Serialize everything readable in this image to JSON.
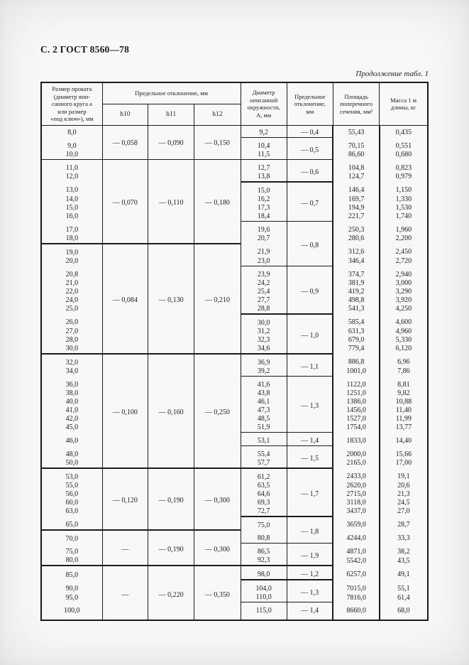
{
  "page": {
    "doc_header": "С. 2 ГОСТ 8560—78",
    "table_note": "Продолжение табл. 1"
  },
  "table": {
    "headers": {
      "size": "Размер проката\n(диаметр впи-\nсанного круга а\nили размер\n«под ключ»), мм",
      "tolerance_group": "Предельное отклонение, мм",
      "h10": "h10",
      "h11": "h11",
      "h12": "h12",
      "diameter": "Диаметр\nописанной\nокружности,\nА, мм",
      "deviation": "Предельное\nотклонение,\nмм",
      "area": "Площадь\nпоперечного\nсечения, мм²",
      "mass": "Масса 1 м\nдлины, кг"
    },
    "rows": [
      {
        "size": "8,0",
        "h": {
          "h10": "— 0,058",
          "h11": "— 0,090",
          "h12": "— 0,150",
          "span": 3
        },
        "a": "9,2",
        "dev": {
          "v": "— 0,4",
          "span": 1
        },
        "area": "55,43",
        "mass": "0,435",
        "r56": 1
      },
      {
        "size": "9,0",
        "a": "10,4",
        "dev": {
          "v": "— 0,5",
          "span": 2
        },
        "area": "70,15",
        "mass": "0,551",
        "gap": 1
      },
      {
        "size": "10,0",
        "a": "11,5",
        "area": "86,60",
        "mass": "0,680",
        "r14": 1,
        "r56": 1
      },
      {
        "size": "11,0",
        "h": {
          "h10": "— 0,070",
          "h11": "— 0,110",
          "h12": "— 0,180",
          "span": 8
        },
        "a": "12,7",
        "dev": {
          "v": "— 0,6",
          "span": 2
        },
        "area": "104,8",
        "mass": "0,823",
        "gap": 1
      },
      {
        "size": "12,0",
        "a": "13,8",
        "area": "124,7",
        "mass": "0,979",
        "r56": 2
      },
      {
        "size": "13,0",
        "a": "15,0",
        "dev": {
          "v": "— 0,7",
          "span": 4
        },
        "area": "146,4",
        "mass": "1,150",
        "gap": 1
      },
      {
        "size": "14,0",
        "a": "16,2",
        "area": "169,7",
        "mass": "1,330"
      },
      {
        "size": "15,0",
        "a": "17,3",
        "area": "194,9",
        "mass": "1,530"
      },
      {
        "size": "16,0",
        "a": "18,4",
        "area": "221,7",
        "mass": "1,740",
        "r56": 1
      },
      {
        "size": "17,0",
        "a": "19,6",
        "dev": {
          "v": "— 0,8",
          "span": 4
        },
        "area": "250,3",
        "mass": "1,960",
        "gap": 1
      },
      {
        "size": "18,0",
        "a": "20,7",
        "area": "280,6",
        "mass": "2,200",
        "r14": 2
      },
      {
        "size": "19,0",
        "h": {
          "h10": "— 0,084",
          "h11": "— 0,130",
          "h12": "— 0,210",
          "span": 11
        },
        "a": "21,9",
        "area": "312,6",
        "mass": "2,450",
        "gap": 1
      },
      {
        "size": "20,0",
        "a": "23,0",
        "area": "346,4",
        "mass": "2,720",
        "r56": 1
      },
      {
        "size": "20,8",
        "a": "23,9",
        "dev": {
          "v": "— 0,9",
          "span": 5
        },
        "area": "374,7",
        "mass": "2,940",
        "gap": 1
      },
      {
        "size": "21,0",
        "a": "24,2",
        "area": "381,9",
        "mass": "3,000"
      },
      {
        "size": "22,0",
        "a": "25,4",
        "area": "419,2",
        "mass": "3,290"
      },
      {
        "size": "24,0",
        "a": "27,7",
        "area": "498,8",
        "mass": "3,920"
      },
      {
        "size": "25,0",
        "a": "28,8",
        "area": "541,3",
        "mass": "4,250",
        "r56": 2
      },
      {
        "size": "26,0",
        "a": "30,0",
        "dev": {
          "v": "— 1,0",
          "span": 4
        },
        "area": "585,4",
        "mass": "4,600",
        "gap": 1
      },
      {
        "size": "27,0",
        "a": "31,2",
        "area": "631,3",
        "mass": "4,960"
      },
      {
        "size": "28,0",
        "a": "32,3",
        "area": "679,0",
        "mass": "5,330"
      },
      {
        "size": "30,0",
        "a": "34,6",
        "area": "779,4",
        "mass": "6,120",
        "r14": 2,
        "r56": 2
      },
      {
        "size": "32,0",
        "h": {
          "h10": "— 0,100",
          "h11": "— 0,160",
          "h12": "— 0,250",
          "span": 11
        },
        "a": "36,9",
        "dev": {
          "v": "— 1,1",
          "span": 2
        },
        "area": "886,8",
        "mass": "6,96",
        "gap": 1
      },
      {
        "size": "34,0",
        "a": "39,2",
        "area": "1001,0",
        "mass": "7,86",
        "r56": 1
      },
      {
        "size": "36,0",
        "a": "41,6",
        "dev": {
          "v": "— 1,3",
          "span": 6
        },
        "area": "1122,0",
        "mass": "8,81",
        "gap": 1
      },
      {
        "size": "38,0",
        "a": "43,8",
        "area": "1251,0",
        "mass": "9,82"
      },
      {
        "size": "40,0",
        "a": "46,1",
        "area": "1386,0",
        "mass": "10,88"
      },
      {
        "size": "41,0",
        "a": "47,3",
        "area": "1456,0",
        "mass": "11,40"
      },
      {
        "size": "42,0",
        "a": "48,5",
        "area": "1527,0",
        "mass": "11,99"
      },
      {
        "size": "45,0",
        "a": "51,9",
        "area": "1754,0",
        "mass": "13,77",
        "r56": 1
      },
      {
        "size": "46,0",
        "a": "53,1",
        "dev": {
          "v": "— 1,4",
          "span": 1
        },
        "area": "1833,0",
        "mass": "14,40",
        "gap": 1,
        "r56": 1
      },
      {
        "size": "48,0",
        "a": "55,4",
        "dev": {
          "v": "— 1,5",
          "span": 2
        },
        "area": "2000,0",
        "mass": "15,66",
        "gap": 1
      },
      {
        "size": "50,0",
        "a": "57,7",
        "area": "2165,0",
        "mass": "17,00",
        "r14": 2,
        "r56": 2
      },
      {
        "size": "53,0",
        "h": {
          "h10": "— 0,120",
          "h11": "— 0,190",
          "h12": "— 0,300",
          "span": 6
        },
        "a": "61,2",
        "dev": {
          "v": "— 1,7",
          "span": 5
        },
        "area": "2433,0",
        "mass": "19,1",
        "gap": 1
      },
      {
        "size": "55,0",
        "a": "63,5",
        "area": "2620,0",
        "mass": "20,6"
      },
      {
        "size": "56,0",
        "a": "64,6",
        "area": "2715,0",
        "mass": "21,3"
      },
      {
        "size": "60,0",
        "a": "69,3",
        "area": "3118,0",
        "mass": "24,5"
      },
      {
        "size": "63,0",
        "a": "72,7",
        "area": "3437,0",
        "mass": "27,0",
        "r56": 2
      },
      {
        "size": "65,0",
        "a": "75,0",
        "dev": {
          "v": "— 1,8",
          "span": 2
        },
        "area": "3659,0",
        "mass": "28,7",
        "gap": 1,
        "r14": 2
      },
      {
        "size": "70,0",
        "h": {
          "h10": "—",
          "h11": "— 0,190",
          "h12": "— 0,300",
          "span": 3
        },
        "a": "80,8",
        "area": "4244,0",
        "mass": "33,3",
        "gap": 1,
        "r56": 1
      },
      {
        "size": "75,0",
        "a": "86,5",
        "dev": {
          "v": "— 1,9",
          "span": 2
        },
        "area": "4871,0",
        "mass": "38,2",
        "gap": 1
      },
      {
        "size": "80,0",
        "a": "92,3",
        "area": "5542,0",
        "mass": "43,5",
        "r14": 2,
        "r56": 2
      },
      {
        "size": "85,0",
        "h": {
          "h10": "—",
          "h11": "— 0,220",
          "h12": "— 0,350",
          "span": 4
        },
        "a": "98,0",
        "dev": {
          "v": "— 1,2",
          "span": 1
        },
        "area": "6257,0",
        "mass": "49,1",
        "gap": 1,
        "r56": 2
      },
      {
        "size": "90,0",
        "a": "104,0",
        "dev": {
          "v": "— 1,3",
          "span": 2
        },
        "area": "7015,0",
        "mass": "55,1",
        "gap": 1
      },
      {
        "size": "95,0",
        "a": "110,0",
        "area": "7816,0",
        "mass": "61,4",
        "r56": 1
      },
      {
        "size": "100,0",
        "a": "115,0",
        "dev": {
          "v": "— 1,4",
          "span": 1
        },
        "area": "8660,0",
        "mass": "68,0",
        "gap": 1
      }
    ]
  }
}
